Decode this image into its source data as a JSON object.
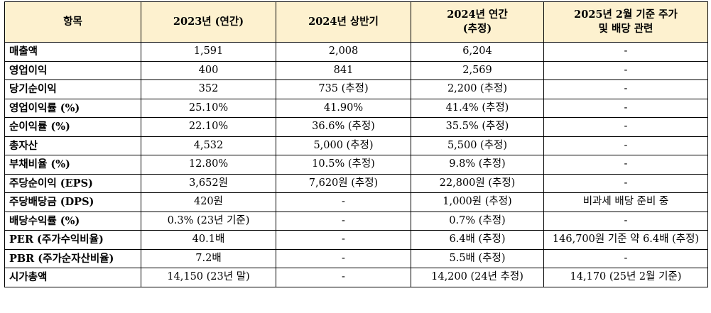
{
  "table": {
    "headers": [
      "항목",
      "2023년 (연간)",
      "2024년 상반기",
      "2024년 연간\n(추정)",
      "2025년 2월 기준 주가\n및 배당 관련"
    ],
    "rows": [
      [
        "매출액",
        "1,591",
        "2,008",
        "6,204",
        "-"
      ],
      [
        "영업이익",
        "400",
        "841",
        "2,569",
        "-"
      ],
      [
        "당기순이익",
        "352",
        "735 (추정)",
        "2,200 (추정)",
        "-"
      ],
      [
        "영업이익률 (%)",
        "25.10%",
        "41.90%",
        "41.4% (추정)",
        "-"
      ],
      [
        "순이익률 (%)",
        "22.10%",
        "36.6% (추정)",
        "35.5% (추정)",
        "-"
      ],
      [
        "총자산",
        "4,532",
        "5,000 (추정)",
        "5,500 (추정)",
        "-"
      ],
      [
        "부채비율 (%)",
        "12.80%",
        "10.5% (추정)",
        "9.8% (추정)",
        "-"
      ],
      [
        "주당순이익 (EPS)",
        "3,652원",
        "7,620원 (추정)",
        "22,800원 (추정)",
        "-"
      ],
      [
        "주당배당금 (DPS)",
        "420원",
        "-",
        "1,000원 (추정)",
        "비과세 배당 준비 중"
      ],
      [
        "배당수익률 (%)",
        "0.3% (23년 기준)",
        "-",
        "0.7% (추정)",
        "-"
      ],
      [
        "PER (주가수익비율)",
        "40.1배",
        "-",
        "6.4배 (추정)",
        "146,700원 기준 약 6.4배 (추정)"
      ],
      [
        "PBR (주가순자산비율)",
        "7.2배",
        "-",
        "5.5배 (추정)",
        "-"
      ],
      [
        "시가총액",
        "14,150 (23년 말)",
        "-",
        "14,200 (24년 추정)",
        "14,170 (25년 2월 기준)"
      ]
    ]
  }
}
